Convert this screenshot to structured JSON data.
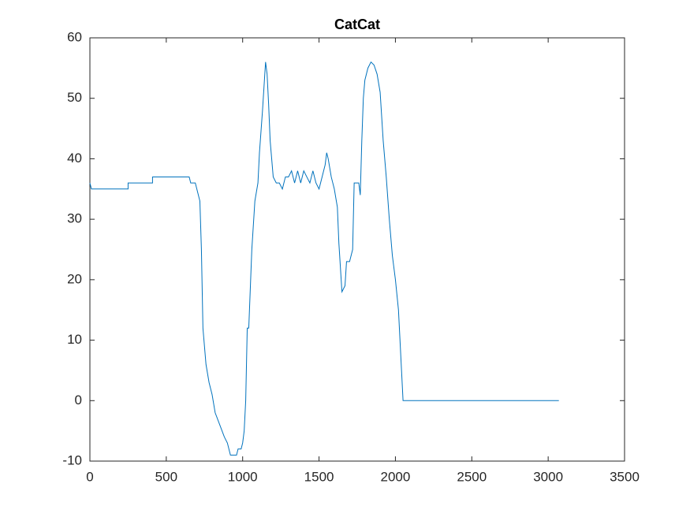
{
  "chart_data": {
    "type": "line",
    "title": "CatCat",
    "x": [
      0,
      10,
      250,
      250,
      410,
      410,
      650,
      660,
      690,
      700,
      720,
      730,
      740,
      760,
      780,
      800,
      820,
      850,
      880,
      900,
      920,
      960,
      970,
      990,
      1000,
      1010,
      1020,
      1030,
      1040,
      1060,
      1080,
      1100,
      1110,
      1130,
      1140,
      1150,
      1160,
      1170,
      1180,
      1190,
      1200,
      1220,
      1240,
      1260,
      1280,
      1300,
      1320,
      1340,
      1360,
      1380,
      1400,
      1420,
      1440,
      1460,
      1480,
      1500,
      1520,
      1540,
      1550,
      1560,
      1580,
      1600,
      1620,
      1630,
      1650,
      1660,
      1670,
      1680,
      1700,
      1720,
      1730,
      1760,
      1770,
      1780,
      1790,
      1800,
      1820,
      1840,
      1860,
      1880,
      1900,
      1920,
      1940,
      1960,
      1980,
      2000,
      2020,
      2040,
      2050,
      3070
    ],
    "y": [
      36,
      35,
      35,
      36,
      36,
      37,
      37,
      36,
      36,
      35,
      33,
      25,
      12,
      6,
      3,
      1,
      -2,
      -4,
      -6,
      -7,
      -9,
      -9,
      -8,
      -8,
      -7,
      -5,
      0,
      12,
      12,
      25,
      33,
      36,
      41,
      48,
      52,
      56,
      54,
      49,
      43,
      40,
      37,
      36,
      36,
      35,
      37,
      37,
      38,
      36,
      38,
      36,
      38,
      37,
      36,
      38,
      36,
      35,
      37,
      39,
      41,
      40,
      37,
      35,
      32,
      26,
      18,
      18.5,
      19,
      23,
      23,
      25,
      36,
      36,
      34,
      43,
      50,
      53,
      55,
      56,
      55.5,
      54,
      51,
      43,
      37,
      30,
      24,
      20,
      15,
      5,
      0,
      0
    ],
    "color": "#0072bd",
    "xlim": [
      0,
      3500
    ],
    "xticks": [
      0,
      500,
      1000,
      1500,
      2000,
      2500,
      3000,
      3500
    ],
    "ylim": [
      -10,
      60
    ],
    "yticks": [
      -10,
      0,
      10,
      20,
      30,
      40,
      50,
      60
    ]
  }
}
